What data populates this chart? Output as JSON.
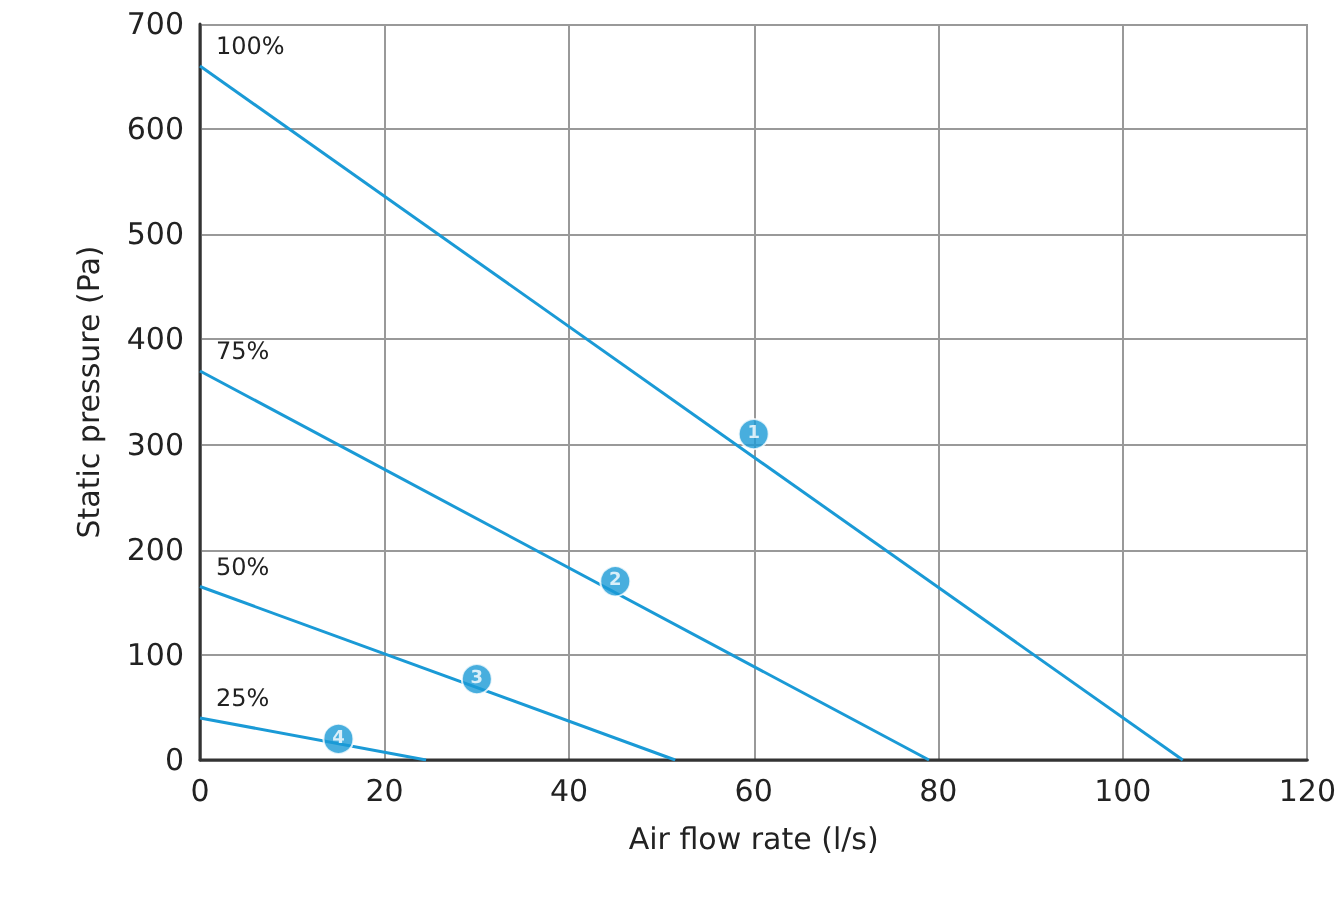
{
  "chart_data": {
    "type": "line",
    "xlabel": "Air flow rate (l/s)",
    "ylabel": "Static pressure (Pa)",
    "xlim": [
      0,
      120
    ],
    "xticks": [
      0,
      20,
      40,
      60,
      80,
      100,
      120
    ],
    "ylim": [
      0,
      700
    ],
    "yticks": [
      0,
      100,
      200,
      300,
      400,
      500,
      600,
      700
    ],
    "grid": true,
    "legend": false,
    "marker": "none",
    "line_style": "solid",
    "series": [
      {
        "name": "100%",
        "color": "#1a9ad6",
        "x": [
          0,
          106.5
        ],
        "values": [
          660,
          0
        ]
      },
      {
        "name": "75%",
        "color": "#1a9ad6",
        "x": [
          0,
          79
        ],
        "values": [
          370,
          0
        ]
      },
      {
        "name": "50%",
        "color": "#1a9ad6",
        "x": [
          0,
          51.5
        ],
        "values": [
          165,
          0
        ]
      },
      {
        "name": "25%",
        "color": "#1a9ad6",
        "x": [
          0,
          24.5
        ],
        "values": [
          40,
          0
        ]
      }
    ],
    "annotations": [
      {
        "text": "1",
        "x": 60,
        "y": 310
      },
      {
        "text": "2",
        "x": 45,
        "y": 170
      },
      {
        "text": "3",
        "x": 30,
        "y": 77
      },
      {
        "text": "4",
        "x": 15,
        "y": 20
      }
    ]
  }
}
